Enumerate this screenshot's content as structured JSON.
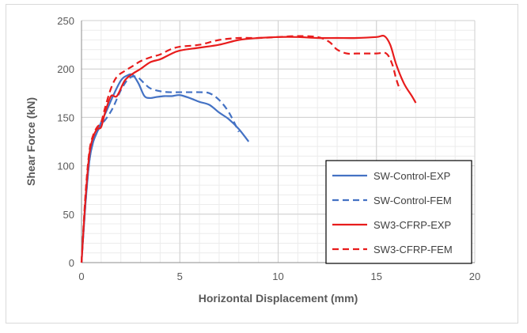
{
  "chart_data": {
    "type": "line",
    "title": "",
    "xlabel": "Horizontal Displacement (mm)",
    "ylabel": "Shear Force (kN)",
    "xlim": [
      0,
      20
    ],
    "ylim": [
      0,
      250
    ],
    "xticks": [
      0,
      5,
      10,
      15,
      20
    ],
    "yticks": [
      0,
      50,
      100,
      150,
      200,
      250
    ],
    "grid": true,
    "legend_position": "right",
    "series": [
      {
        "name": "SW-Control-EXP",
        "color": "#4472c4",
        "style": "solid",
        "x": [
          0,
          0.2,
          0.4,
          0.6,
          0.8,
          1.0,
          1.3,
          1.6,
          2.0,
          2.3,
          2.6,
          2.9,
          3.2,
          3.5,
          3.8,
          4.2,
          4.6,
          5.0,
          5.5,
          6.0,
          6.5,
          7.0,
          7.5,
          8.0,
          8.5
        ],
        "y": [
          0,
          60,
          105,
          125,
          135,
          145,
          158,
          172,
          188,
          193,
          194,
          185,
          172,
          170,
          171,
          172,
          172,
          173,
          170,
          166,
          163,
          155,
          148,
          138,
          125
        ]
      },
      {
        "name": "SW-Control-FEM",
        "color": "#4472c4",
        "style": "dashed",
        "x": [
          0,
          0.2,
          0.4,
          0.6,
          0.8,
          1.0,
          1.3,
          1.6,
          2.0,
          2.4,
          2.8,
          3.2,
          3.5,
          4.0,
          4.5,
          5.0,
          5.5,
          6.0,
          6.5,
          7.0,
          7.5,
          8.0
        ],
        "y": [
          0,
          60,
          105,
          125,
          135,
          142,
          150,
          160,
          178,
          190,
          192,
          185,
          180,
          177,
          176,
          176,
          176,
          176,
          175,
          168,
          155,
          135
        ]
      },
      {
        "name": "SW3-CFRP-EXP",
        "color": "#e81c1c",
        "style": "solid",
        "x": [
          0,
          0.2,
          0.4,
          0.6,
          0.8,
          1.0,
          1.2,
          1.5,
          1.8,
          2.2,
          2.6,
          3.0,
          3.5,
          4.0,
          4.5,
          5.0,
          6.0,
          7.0,
          8.0,
          9.0,
          10.0,
          11.0,
          12.0,
          13.0,
          14.0,
          15.0,
          15.4,
          15.7,
          16.0,
          16.4,
          16.8,
          17.0
        ],
        "y": [
          0,
          65,
          112,
          130,
          138,
          140,
          155,
          172,
          172,
          188,
          195,
          200,
          207,
          210,
          215,
          219,
          222,
          225,
          230,
          232,
          233,
          233,
          232,
          232,
          232,
          233,
          234,
          225,
          205,
          185,
          172,
          165
        ]
      },
      {
        "name": "SW3-CFRP-FEM",
        "color": "#e81c1c",
        "style": "dashed",
        "x": [
          0,
          0.2,
          0.4,
          0.6,
          0.8,
          1.0,
          1.2,
          1.5,
          1.8,
          2.2,
          2.6,
          3.0,
          3.5,
          4.0,
          4.5,
          5.0,
          6.0,
          7.0,
          8.0,
          9.0,
          10.0,
          11.0,
          12.0,
          12.6,
          13.0,
          13.5,
          14.0,
          15.0,
          15.5,
          15.8,
          16.0,
          16.2
        ],
        "y": [
          0,
          70,
          115,
          132,
          140,
          145,
          160,
          180,
          192,
          198,
          203,
          208,
          212,
          215,
          220,
          223,
          225,
          230,
          232,
          232,
          233,
          234,
          233,
          228,
          220,
          216,
          216,
          216,
          216,
          205,
          190,
          178
        ]
      }
    ]
  }
}
